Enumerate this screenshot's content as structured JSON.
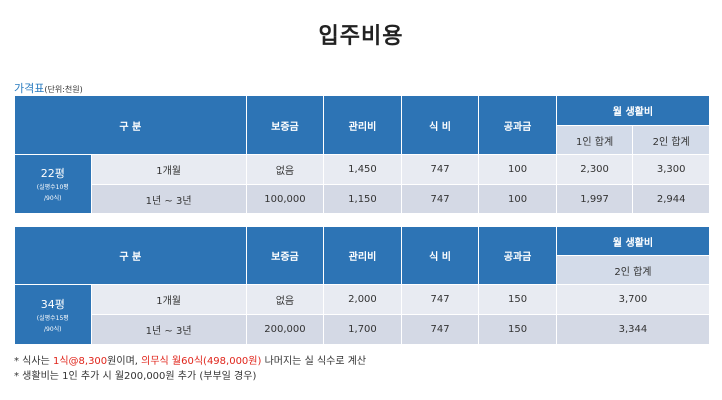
{
  "page": {
    "title": "입주비용"
  },
  "price_table": {
    "label": "가격표",
    "unit": "(단위:천원)"
  },
  "headers": {
    "category": "구 분",
    "deposit": "보증금",
    "management": "관리비",
    "meal": "식 비",
    "utilities": "공과금",
    "monthly": "월 생활비",
    "one_person": "1인 합계",
    "two_person": "2인 합계"
  },
  "table1": {
    "size_main": "22평",
    "size_sub1": "(실평수10평",
    "size_sub2": "/90식)",
    "rows": [
      {
        "term": "1개월",
        "deposit": "없음",
        "management": "1,450",
        "meal": "747",
        "utilities": "100",
        "one": "2,300",
        "two": "3,300"
      },
      {
        "term": "1년 ~ 3년",
        "deposit": "100,000",
        "management": "1,150",
        "meal": "747",
        "utilities": "100",
        "one": "1,997",
        "two": "2,944"
      }
    ]
  },
  "table2": {
    "size_main": "34평",
    "size_sub1": "(실평수15평",
    "size_sub2": "/90식)",
    "rows": [
      {
        "term": "1개월",
        "deposit": "없음",
        "management": "2,000",
        "meal": "747",
        "utilities": "150",
        "two": "3,700"
      },
      {
        "term": "1년 ~ 3년",
        "deposit": "200,000",
        "management": "1,700",
        "meal": "747",
        "utilities": "150",
        "two": "3,344"
      }
    ]
  },
  "notes": {
    "n1_prefix": "* 식사는 ",
    "n1_red1": "1식@8,300",
    "n1_mid": "원이며, ",
    "n1_red2": "의무식 월60식(498,000원)",
    "n1_suffix": " 나머지는 실 식수로 계산",
    "n2": "* 생활비는 1인 추가 시 월200,000원 추가 (부부일 경우)"
  },
  "colors": {
    "header_blue": "#2d74b5",
    "sub_header": "#d3dbe9",
    "row_light": "#e8ebf2",
    "row_dark": "#d4d9e5",
    "caption_blue": "#2a7cc0",
    "note_red": "#e0251b"
  }
}
